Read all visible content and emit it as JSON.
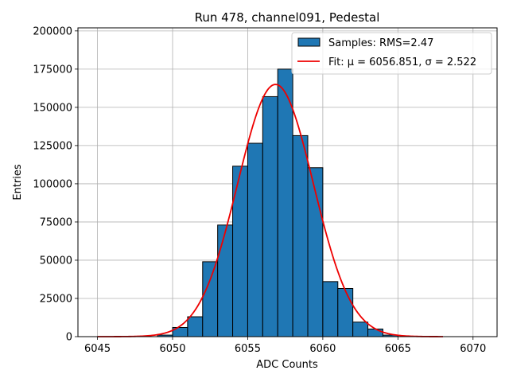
{
  "chart_data": {
    "type": "bar",
    "title": "Run 478, channel091, Pedestal",
    "xlabel": "ADC Counts",
    "ylabel": "Entries",
    "xlim": [
      6043.7,
      6071.6
    ],
    "ylim": [
      0,
      202000
    ],
    "grid": true,
    "legend_position": "top-right",
    "x_ticks": [
      6045,
      6050,
      6055,
      6060,
      6065,
      6070
    ],
    "y_ticks": [
      0,
      25000,
      50000,
      75000,
      100000,
      125000,
      150000,
      175000,
      200000
    ],
    "x_tick_labels": [
      "6045",
      "6050",
      "6055",
      "6060",
      "6065",
      "6070"
    ],
    "y_tick_labels": [
      "0",
      "25000",
      "50000",
      "75000",
      "100000",
      "125000",
      "150000",
      "175000",
      "200000"
    ],
    "bin_width": 1,
    "bins": [
      {
        "x": 6049,
        "value": 1000
      },
      {
        "x": 6050,
        "value": 6000
      },
      {
        "x": 6051,
        "value": 13000
      },
      {
        "x": 6052,
        "value": 49000
      },
      {
        "x": 6053,
        "value": 73000
      },
      {
        "x": 6054,
        "value": 111500
      },
      {
        "x": 6055,
        "value": 126500
      },
      {
        "x": 6056,
        "value": 157000
      },
      {
        "x": 6057,
        "value": 175000
      },
      {
        "x": 6058,
        "value": 131500
      },
      {
        "x": 6059,
        "value": 110500
      },
      {
        "x": 6060,
        "value": 36000
      },
      {
        "x": 6061,
        "value": 31500
      },
      {
        "x": 6062,
        "value": 9500
      },
      {
        "x": 6063,
        "value": 5000
      },
      {
        "x": 6064,
        "value": 1000
      }
    ],
    "fit": {
      "mu": 6056.851,
      "sigma": 2.522,
      "amplitude": 165000,
      "x_range": [
        6045,
        6068
      ]
    },
    "series": [
      {
        "name": "Samples: RMS=2.47",
        "kind": "histogram",
        "color": "#1f77b4"
      },
      {
        "name": "Fit: μ = 6056.851, σ = 2.522",
        "kind": "line",
        "color": "#ee0000"
      }
    ]
  }
}
